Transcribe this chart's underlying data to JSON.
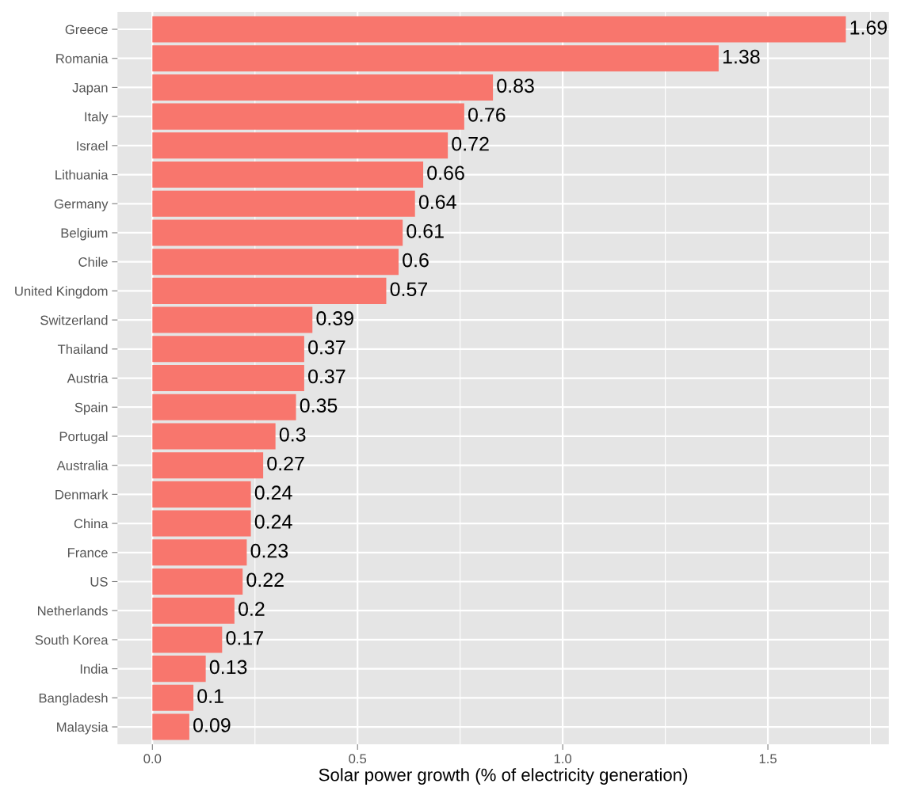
{
  "chart_data": {
    "type": "bar",
    "orientation": "horizontal",
    "xlabel": "Solar power growth (% of electricity generation)",
    "categories": [
      "Greece",
      "Romania",
      "Japan",
      "Italy",
      "Israel",
      "Lithuania",
      "Germany",
      "Belgium",
      "Chile",
      "United Kingdom",
      "Switzerland",
      "Thailand",
      "Austria",
      "Spain",
      "Portugal",
      "Australia",
      "Denmark",
      "China",
      "France",
      "US",
      "Netherlands",
      "South Korea",
      "India",
      "Bangladesh",
      "Malaysia"
    ],
    "values": [
      1.69,
      1.38,
      0.83,
      0.76,
      0.72,
      0.66,
      0.64,
      0.61,
      0.6,
      0.57,
      0.39,
      0.37,
      0.37,
      0.35,
      0.3,
      0.27,
      0.24,
      0.24,
      0.23,
      0.22,
      0.2,
      0.17,
      0.13,
      0.1,
      0.09
    ],
    "color": "#f8766d",
    "data_labels": true,
    "xlim": [
      -0.085,
      1.795
    ],
    "xticks": [
      {
        "value": 0,
        "label": "0.0"
      },
      0.5,
      {
        "value": 1,
        "label": "1.0"
      },
      1.5
    ],
    "grid": true
  }
}
